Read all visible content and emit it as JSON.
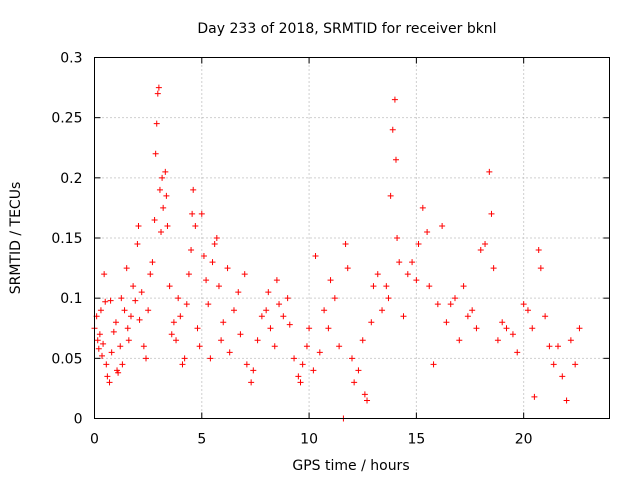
{
  "chart_data": {
    "type": "scatter",
    "title": "Day 233 of 2018, SRMTID for receiver bknl",
    "xlabel": "GPS time / hours",
    "ylabel": "SRMTID / TECUs",
    "xlim": [
      0,
      24
    ],
    "ylim": [
      0,
      0.3
    ],
    "xticks": [
      0,
      5,
      10,
      15,
      20
    ],
    "xtick_labels": [
      "0",
      "5",
      "10",
      "15",
      "20"
    ],
    "yticks": [
      0,
      0.05,
      0.1,
      0.15,
      0.2,
      0.25,
      0.3
    ],
    "ytick_labels": [
      "0",
      "0.05",
      "0.1",
      "0.15",
      "0.2",
      "0.25",
      "0.3"
    ],
    "grid": true,
    "marker": "+",
    "color": "#ff0000",
    "series": [
      {
        "name": "SRMTID",
        "points": [
          [
            0.0,
            0.075
          ],
          [
            0.1,
            0.085
          ],
          [
            0.15,
            0.065
          ],
          [
            0.2,
            0.058
          ],
          [
            0.25,
            0.07
          ],
          [
            0.3,
            0.09
          ],
          [
            0.35,
            0.052
          ],
          [
            0.4,
            0.062
          ],
          [
            0.45,
            0.12
          ],
          [
            0.5,
            0.097
          ],
          [
            0.55,
            0.045
          ],
          [
            0.6,
            0.035
          ],
          [
            0.7,
            0.03
          ],
          [
            0.75,
            0.098
          ],
          [
            0.8,
            0.055
          ],
          [
            0.9,
            0.072
          ],
          [
            1.0,
            0.08
          ],
          [
            1.05,
            0.04
          ],
          [
            1.1,
            0.038
          ],
          [
            1.2,
            0.06
          ],
          [
            1.25,
            0.1
          ],
          [
            1.3,
            0.045
          ],
          [
            1.4,
            0.09
          ],
          [
            1.5,
            0.125
          ],
          [
            1.55,
            0.075
          ],
          [
            1.6,
            0.065
          ],
          [
            1.7,
            0.085
          ],
          [
            1.8,
            0.11
          ],
          [
            1.9,
            0.098
          ],
          [
            2.0,
            0.145
          ],
          [
            2.05,
            0.16
          ],
          [
            2.1,
            0.082
          ],
          [
            2.2,
            0.105
          ],
          [
            2.3,
            0.06
          ],
          [
            2.4,
            0.05
          ],
          [
            2.5,
            0.09
          ],
          [
            2.6,
            0.12
          ],
          [
            2.7,
            0.13
          ],
          [
            2.8,
            0.165
          ],
          [
            2.85,
            0.22
          ],
          [
            2.9,
            0.245
          ],
          [
            2.95,
            0.27
          ],
          [
            3.0,
            0.275
          ],
          [
            3.05,
            0.19
          ],
          [
            3.1,
            0.155
          ],
          [
            3.15,
            0.2
          ],
          [
            3.2,
            0.175
          ],
          [
            3.3,
            0.205
          ],
          [
            3.35,
            0.185
          ],
          [
            3.4,
            0.16
          ],
          [
            3.5,
            0.11
          ],
          [
            3.6,
            0.07
          ],
          [
            3.7,
            0.08
          ],
          [
            3.8,
            0.065
          ],
          [
            3.9,
            0.1
          ],
          [
            4.0,
            0.085
          ],
          [
            4.1,
            0.045
          ],
          [
            4.2,
            0.05
          ],
          [
            4.3,
            0.095
          ],
          [
            4.4,
            0.12
          ],
          [
            4.5,
            0.14
          ],
          [
            4.55,
            0.17
          ],
          [
            4.6,
            0.19
          ],
          [
            4.7,
            0.16
          ],
          [
            4.8,
            0.075
          ],
          [
            4.9,
            0.06
          ],
          [
            5.0,
            0.17
          ],
          [
            5.1,
            0.135
          ],
          [
            5.2,
            0.115
          ],
          [
            5.3,
            0.095
          ],
          [
            5.4,
            0.05
          ],
          [
            5.5,
            0.13
          ],
          [
            5.6,
            0.145
          ],
          [
            5.7,
            0.15
          ],
          [
            5.8,
            0.11
          ],
          [
            5.9,
            0.065
          ],
          [
            6.0,
            0.08
          ],
          [
            6.2,
            0.125
          ],
          [
            6.3,
            0.055
          ],
          [
            6.5,
            0.09
          ],
          [
            6.7,
            0.105
          ],
          [
            6.8,
            0.07
          ],
          [
            7.0,
            0.12
          ],
          [
            7.1,
            0.045
          ],
          [
            7.3,
            0.03
          ],
          [
            7.4,
            0.04
          ],
          [
            7.6,
            0.065
          ],
          [
            7.8,
            0.085
          ],
          [
            8.0,
            0.09
          ],
          [
            8.1,
            0.105
          ],
          [
            8.2,
            0.075
          ],
          [
            8.4,
            0.06
          ],
          [
            8.5,
            0.115
          ],
          [
            8.6,
            0.095
          ],
          [
            8.8,
            0.085
          ],
          [
            9.0,
            0.1
          ],
          [
            9.1,
            0.078
          ],
          [
            9.3,
            0.05
          ],
          [
            9.5,
            0.035
          ],
          [
            9.6,
            0.03
          ],
          [
            9.7,
            0.045
          ],
          [
            9.9,
            0.06
          ],
          [
            10.0,
            0.075
          ],
          [
            10.2,
            0.04
          ],
          [
            10.3,
            0.135
          ],
          [
            10.5,
            0.055
          ],
          [
            10.7,
            0.09
          ],
          [
            10.9,
            0.075
          ],
          [
            11.0,
            0.115
          ],
          [
            11.2,
            0.1
          ],
          [
            11.4,
            0.06
          ],
          [
            11.6,
            0.0
          ],
          [
            11.7,
            0.145
          ],
          [
            11.8,
            0.125
          ],
          [
            12.0,
            0.05
          ],
          [
            12.1,
            0.03
          ],
          [
            12.3,
            0.04
          ],
          [
            12.5,
            0.065
          ],
          [
            12.6,
            0.02
          ],
          [
            12.7,
            0.015
          ],
          [
            12.9,
            0.08
          ],
          [
            13.0,
            0.11
          ],
          [
            13.2,
            0.12
          ],
          [
            13.4,
            0.09
          ],
          [
            13.6,
            0.11
          ],
          [
            13.7,
            0.1
          ],
          [
            13.8,
            0.185
          ],
          [
            13.9,
            0.24
          ],
          [
            14.0,
            0.265
          ],
          [
            14.05,
            0.215
          ],
          [
            14.1,
            0.15
          ],
          [
            14.2,
            0.13
          ],
          [
            14.4,
            0.085
          ],
          [
            14.6,
            0.12
          ],
          [
            14.8,
            0.13
          ],
          [
            15.0,
            0.115
          ],
          [
            15.1,
            0.145
          ],
          [
            15.3,
            0.175
          ],
          [
            15.5,
            0.155
          ],
          [
            15.6,
            0.11
          ],
          [
            15.8,
            0.045
          ],
          [
            16.0,
            0.095
          ],
          [
            16.2,
            0.16
          ],
          [
            16.4,
            0.08
          ],
          [
            16.6,
            0.095
          ],
          [
            16.8,
            0.1
          ],
          [
            17.0,
            0.065
          ],
          [
            17.2,
            0.11
          ],
          [
            17.4,
            0.085
          ],
          [
            17.6,
            0.09
          ],
          [
            17.8,
            0.075
          ],
          [
            18.0,
            0.14
          ],
          [
            18.2,
            0.145
          ],
          [
            18.4,
            0.205
          ],
          [
            18.5,
            0.17
          ],
          [
            18.6,
            0.125
          ],
          [
            18.8,
            0.065
          ],
          [
            19.0,
            0.08
          ],
          [
            19.2,
            0.075
          ],
          [
            19.5,
            0.07
          ],
          [
            19.7,
            0.055
          ],
          [
            20.0,
            0.095
          ],
          [
            20.2,
            0.09
          ],
          [
            20.4,
            0.075
          ],
          [
            20.5,
            0.018
          ],
          [
            20.7,
            0.14
          ],
          [
            20.8,
            0.125
          ],
          [
            21.0,
            0.085
          ],
          [
            21.2,
            0.06
          ],
          [
            21.4,
            0.045
          ],
          [
            21.6,
            0.06
          ],
          [
            21.8,
            0.035
          ],
          [
            22.0,
            0.015
          ],
          [
            22.2,
            0.065
          ],
          [
            22.4,
            0.045
          ],
          [
            22.6,
            0.075
          ]
        ]
      }
    ]
  }
}
